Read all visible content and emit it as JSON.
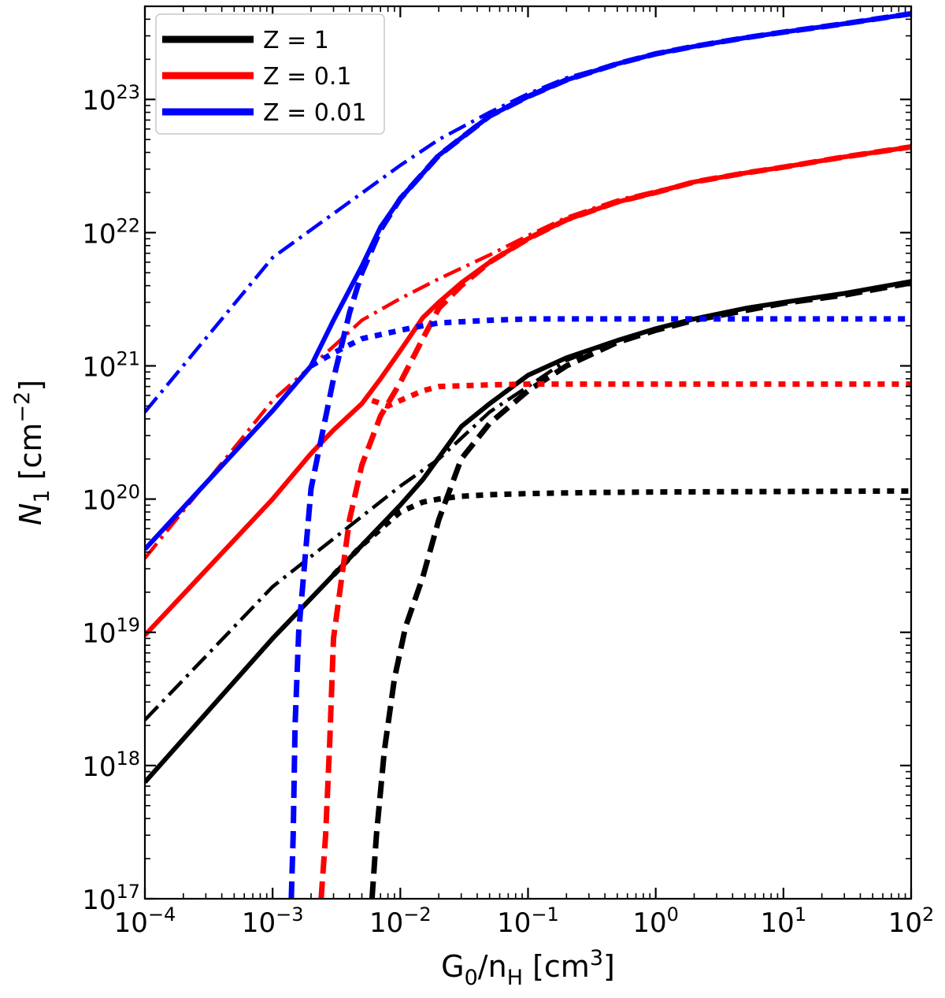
{
  "chart_data": {
    "type": "line",
    "xlabel": {
      "base": "G",
      "sub0": "0",
      "slash": "/n",
      "subH": "H",
      "unitOpen": " [cm",
      "unitSup": "3",
      "unitClose": "]"
    },
    "ylabel": {
      "base": "N",
      "sub": "1",
      "unitOpen": " [cm",
      "unitSup": "−2",
      "unitClose": "]"
    },
    "x_scale": "log",
    "y_scale": "log",
    "xlim": [
      0.0001,
      100
    ],
    "ylim": [
      1e+17,
      5e+23
    ],
    "x_ticks": [
      {
        "base": "10",
        "exp": "−4",
        "value": 0.0001
      },
      {
        "base": "10",
        "exp": "−3",
        "value": 0.001
      },
      {
        "base": "10",
        "exp": "−2",
        "value": 0.01
      },
      {
        "base": "10",
        "exp": "−1",
        "value": 0.1
      },
      {
        "base": "10",
        "exp": "0",
        "value": 1
      },
      {
        "base": "10",
        "exp": "1",
        "value": 10
      },
      {
        "base": "10",
        "exp": "2",
        "value": 100
      }
    ],
    "y_ticks": [
      {
        "base": "10",
        "exp": "17",
        "value": 1e+17
      },
      {
        "base": "10",
        "exp": "18",
        "value": 1e+18
      },
      {
        "base": "10",
        "exp": "19",
        "value": 1e+19
      },
      {
        "base": "10",
        "exp": "20",
        "value": 1e+20
      },
      {
        "base": "10",
        "exp": "21",
        "value": 1e+21
      },
      {
        "base": "10",
        "exp": "22",
        "value": 1e+22
      },
      {
        "base": "10",
        "exp": "23",
        "value": 1e+23
      }
    ],
    "grid": false,
    "legend_position": "top-left",
    "series": [
      {
        "name": "Z = 1",
        "color": "#000000",
        "style": "solid",
        "x": [
          0.0001,
          0.001,
          0.005,
          0.01,
          0.015,
          0.03,
          0.05,
          0.1,
          0.2,
          0.5,
          1,
          2,
          5,
          10,
          30,
          100
        ],
        "y": [
          7.5e+17,
          9e+18,
          4.5e+19,
          9e+19,
          1.4e+20,
          3.5e+20,
          5.2e+20,
          8.5e+20,
          1.15e+21,
          1.55e+21,
          1.9e+21,
          2.25e+21,
          2.7e+21,
          3e+21,
          3.5e+21,
          4.3e+21
        ]
      },
      {
        "name": "",
        "color": "#000000",
        "style": "dashed",
        "x": [
          0.006,
          0.0065,
          0.0075,
          0.009,
          0.011,
          0.015,
          0.02,
          0.03,
          0.05,
          0.1,
          0.2,
          0.5,
          1,
          2,
          5,
          10,
          30,
          100
        ],
        "y": [
          1e+17,
          3e+17,
          1.3e+18,
          4.5e+18,
          1.1e+19,
          2.6e+19,
          7e+19,
          2e+20,
          3.7e+20,
          6.5e+20,
          1e+21,
          1.5e+21,
          1.85e+21,
          2.2e+21,
          2.6e+21,
          2.95e+21,
          3.4e+21,
          4.2e+21
        ]
      },
      {
        "name": "",
        "color": "#000000",
        "style": "dashdot",
        "x": [
          0.0001,
          0.001,
          0.01,
          0.02,
          0.05,
          0.1,
          0.2,
          0.5,
          1,
          2,
          5,
          10,
          30,
          100
        ],
        "y": [
          2.2e+18,
          2.2e+19,
          1.25e+20,
          2e+20,
          4.5e+20,
          7e+20,
          1.1e+21,
          1.55e+21,
          1.9e+21,
          2.25e+21,
          2.7e+21,
          3e+21,
          3.5e+21,
          4.3e+21
        ]
      },
      {
        "name": "",
        "color": "#000000",
        "style": "dotted",
        "x": [
          0.003,
          0.005,
          0.01,
          0.015,
          0.02,
          0.03,
          0.05,
          0.1,
          0.3,
          1,
          10,
          100
        ],
        "y": [
          2.7e+19,
          4.5e+19,
          8e+19,
          9.5e+19,
          1e+20,
          1.05e+20,
          1.08e+20,
          1.1e+20,
          1.12e+20,
          1.13e+20,
          1.14e+20,
          1.15e+20
        ]
      },
      {
        "name": "Z = 0.1",
        "color": "#ff0000",
        "style": "solid",
        "x": [
          0.0001,
          0.001,
          0.002,
          0.003,
          0.005,
          0.007,
          0.01,
          0.015,
          0.02,
          0.03,
          0.05,
          0.1,
          0.2,
          0.5,
          1,
          2,
          5,
          10,
          30,
          100
        ],
        "y": [
          9.5e+18,
          1e+20,
          2.2e+20,
          3.3e+20,
          5.2e+20,
          8e+20,
          1.3e+21,
          2.3e+21,
          3e+21,
          4.2e+21,
          6e+21,
          9e+21,
          1.25e+22,
          1.7e+22,
          2e+22,
          2.4e+22,
          2.8e+22,
          3.1e+22,
          3.7e+22,
          4.4e+22
        ]
      },
      {
        "name": "",
        "color": "#ff0000",
        "style": "dashed",
        "x": [
          0.0024,
          0.0026,
          0.0028,
          0.003,
          0.004,
          0.005,
          0.007,
          0.01,
          0.015,
          0.02,
          0.03,
          0.05,
          0.1,
          0.2,
          0.5,
          1,
          2,
          5,
          10,
          30,
          100
        ],
        "y": [
          1e+17,
          3e+17,
          1.5e+18,
          9e+18,
          7e+19,
          1.8e+20,
          4.2e+20,
          7.5e+20,
          1.6e+21,
          2.7e+21,
          4e+21,
          6e+21,
          9e+21,
          1.25e+22,
          1.7e+22,
          2e+22,
          2.4e+22,
          2.8e+22,
          3.1e+22,
          3.7e+22,
          4.4e+22
        ]
      },
      {
        "name": "",
        "color": "#ff0000",
        "style": "dashdot",
        "x": [
          0.0001,
          0.001,
          0.003,
          0.005,
          0.01,
          0.02,
          0.05,
          0.1,
          0.2,
          0.5,
          1,
          2,
          5,
          10,
          30,
          100
        ],
        "y": [
          3.6e+19,
          5.5e+20,
          1.4e+21,
          2.2e+21,
          3.2e+21,
          4.5e+21,
          6.8e+21,
          9.5e+21,
          1.3e+22,
          1.75e+22,
          2.05e+22,
          2.4e+22,
          2.8e+22,
          3.1e+22,
          3.7e+22,
          4.4e+22
        ]
      },
      {
        "name": "",
        "color": "#ff0000",
        "style": "dotted",
        "x": [
          0.006,
          0.008,
          0.01,
          0.015,
          0.02,
          0.05,
          0.1,
          1,
          10,
          100
        ],
        "y": [
          5.5e+20,
          5e+20,
          5.5e+20,
          6.5e+20,
          7e+20,
          7.2e+20,
          7.3e+20,
          7.3e+20,
          7.3e+20,
          7.3e+20
        ]
      },
      {
        "name": "Z = 0.01",
        "color": "#0000ff",
        "style": "solid",
        "x": [
          0.0001,
          0.001,
          0.002,
          0.003,
          0.005,
          0.007,
          0.01,
          0.02,
          0.05,
          0.1,
          0.2,
          0.5,
          1,
          2,
          5,
          10,
          30,
          100
        ],
        "y": [
          4.2e+19,
          4.6e+20,
          1e+21,
          2.2e+21,
          5.6e+21,
          1.1e+22,
          1.8e+22,
          3.8e+22,
          7.5e+22,
          1.05e+23,
          1.4e+23,
          1.85e+23,
          2.2e+23,
          2.5e+23,
          2.9e+23,
          3.2e+23,
          3.7e+23,
          4.4e+23
        ]
      },
      {
        "name": "",
        "color": "#0000ff",
        "style": "dashed",
        "x": [
          0.0014,
          0.00145,
          0.0015,
          0.0016,
          0.002,
          0.003,
          0.004,
          0.005,
          0.007,
          0.01,
          0.02,
          0.05,
          0.1,
          0.2,
          0.5,
          1,
          2,
          5,
          10,
          30,
          100
        ],
        "y": [
          1e+17,
          3e+17,
          2e+18,
          1e+19,
          1.2e+20,
          8e+20,
          2.5e+21,
          5e+21,
          1.05e+22,
          1.8e+22,
          3.8e+22,
          7.5e+22,
          1.05e+23,
          1.4e+23,
          1.85e+23,
          2.2e+23,
          2.5e+23,
          2.9e+23,
          3.2e+23,
          3.7e+23,
          4.4e+23
        ]
      },
      {
        "name": "",
        "color": "#0000ff",
        "style": "dashdot",
        "x": [
          0.0001,
          0.001,
          0.01,
          0.02,
          0.05,
          0.1,
          0.2,
          0.5,
          1,
          2,
          5,
          10,
          30,
          100
        ],
        "y": [
          4.5e+20,
          6.5e+21,
          3.2e+22,
          5e+22,
          8e+22,
          1.1e+23,
          1.45e+23,
          1.85e+23,
          2.2e+23,
          2.5e+23,
          2.9e+23,
          3.2e+23,
          3.7e+23,
          4.4e+23
        ]
      },
      {
        "name": "",
        "color": "#0000ff",
        "style": "dotted",
        "x": [
          0.002,
          0.003,
          0.005,
          0.01,
          0.015,
          0.02,
          0.05,
          0.1,
          1,
          10,
          100
        ],
        "y": [
          1e+21,
          1.25e+21,
          1.6e+21,
          1.85e+21,
          2e+21,
          2.1e+21,
          2.2e+21,
          2.25e+21,
          2.25e+21,
          2.25e+21,
          2.25e+21
        ]
      }
    ]
  }
}
